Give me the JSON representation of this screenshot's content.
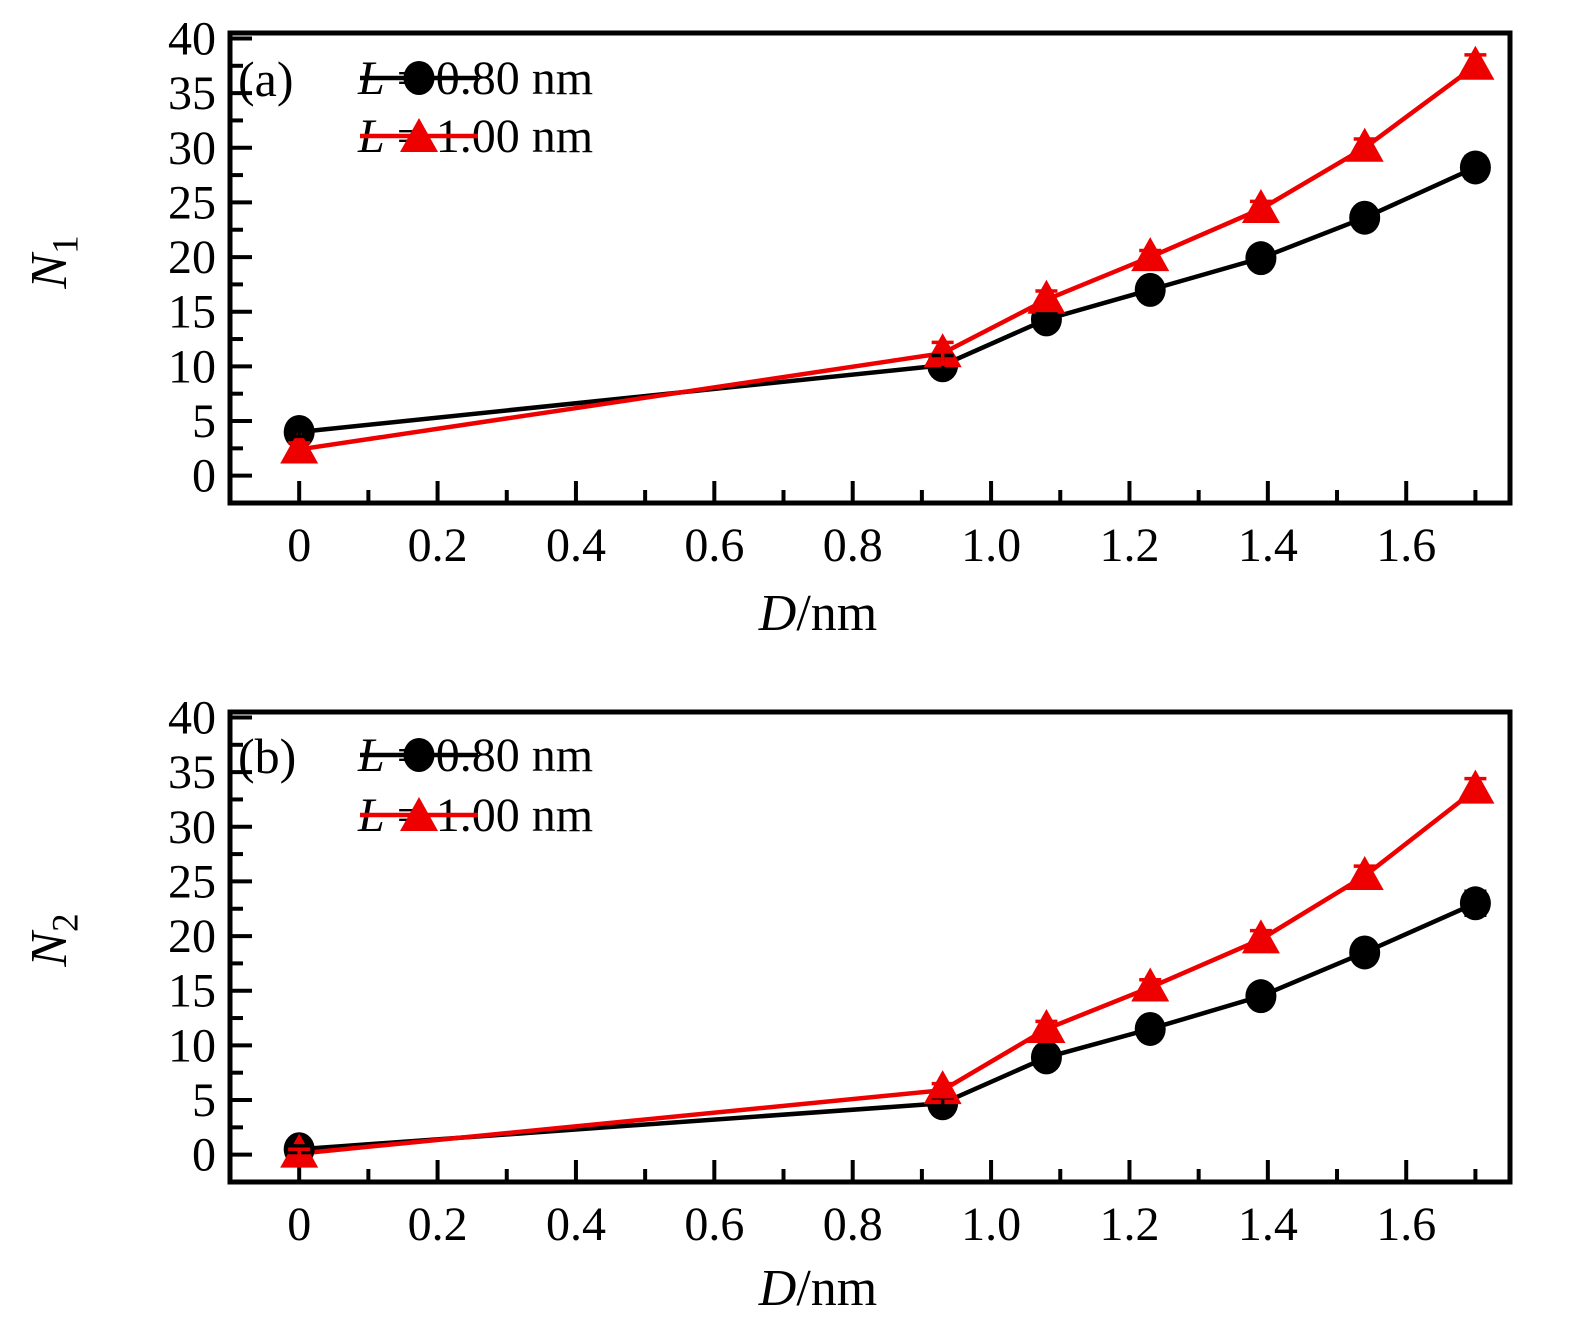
{
  "figure": {
    "background": "#ffffff",
    "series_black": "#000000",
    "series_red": "#ee0000"
  },
  "legend": {
    "entries": [
      {
        "icon": "circle-marker-icon",
        "color": "#000000",
        "var": "L",
        "rest": " = 0.80 nm"
      },
      {
        "icon": "triangle-marker-icon",
        "color": "#ee0000",
        "var": "L",
        "rest": " = 1.00 nm"
      }
    ]
  },
  "panels": {
    "a": {
      "tag": "(a)",
      "ylabel_var": "N",
      "ylabel_sub": "1",
      "xlabel_var": "D",
      "xlabel_rest": "/nm"
    },
    "b": {
      "tag": "(b)",
      "ylabel_var": "N",
      "ylabel_sub": "2",
      "xlabel_var": "D",
      "xlabel_rest": "/nm"
    }
  },
  "chart_data": [
    {
      "id": "a",
      "type": "line",
      "title": "(a)",
      "xlabel": "D/nm",
      "ylabel": "N1",
      "xlim": [
        -0.1,
        1.75
      ],
      "ylim": [
        -2.5,
        40.5
      ],
      "grid": false,
      "legend_position": "top-left",
      "x_major_ticks": [
        0,
        0.2,
        0.4,
        0.6,
        0.8,
        1.0,
        1.2,
        1.4,
        1.6
      ],
      "x_tick_labels": [
        "0",
        "0.2",
        "0.4",
        "0.6",
        "0.8",
        "1.0",
        "1.2",
        "1.4",
        "1.6"
      ],
      "x_minor_step": 0.1,
      "y_major_ticks": [
        0,
        5,
        10,
        15,
        20,
        25,
        30,
        35,
        40
      ],
      "y_tick_labels": [
        "0",
        "5",
        "10",
        "15",
        "20",
        "25",
        "30",
        "35",
        "40"
      ],
      "y_minor_step": 2.5,
      "x": [
        0,
        0.93,
        1.08,
        1.23,
        1.39,
        1.54,
        1.7
      ],
      "series": [
        {
          "name": "L = 0.80 nm",
          "marker": "circle",
          "color": "#000000",
          "values": [
            4.0,
            10.1,
            14.3,
            17.0,
            19.9,
            23.6,
            28.2
          ],
          "errors": [
            0.4,
            0.9,
            0.5,
            0.4,
            0.4,
            0.5,
            1.0
          ]
        },
        {
          "name": "L = 1.00 nm",
          "marker": "triangle",
          "color": "#ee0000",
          "values": [
            2.4,
            11.2,
            16.1,
            20.0,
            24.4,
            30.0,
            37.5
          ],
          "errors": [
            0.6,
            1.0,
            0.8,
            0.6,
            0.7,
            0.8,
            1.0
          ]
        }
      ]
    },
    {
      "id": "b",
      "type": "line",
      "title": "(b)",
      "xlabel": "D/nm",
      "ylabel": "N2",
      "xlim": [
        -0.1,
        1.75
      ],
      "ylim": [
        -2.5,
        40.5
      ],
      "grid": false,
      "legend_position": "top-left",
      "x_major_ticks": [
        0,
        0.2,
        0.4,
        0.6,
        0.8,
        1.0,
        1.2,
        1.4,
        1.6
      ],
      "x_tick_labels": [
        "0",
        "0.2",
        "0.4",
        "0.6",
        "0.8",
        "1.0",
        "1.2",
        "1.4",
        "1.6"
      ],
      "x_minor_step": 0.1,
      "y_major_ticks": [
        0,
        5,
        10,
        15,
        20,
        25,
        30,
        35,
        40
      ],
      "y_tick_labels": [
        "0",
        "5",
        "10",
        "15",
        "20",
        "25",
        "30",
        "35",
        "40"
      ],
      "y_minor_step": 2.5,
      "x": [
        0,
        0.93,
        1.08,
        1.23,
        1.39,
        1.54,
        1.7
      ],
      "series": [
        {
          "name": "L = 0.80 nm",
          "marker": "circle",
          "color": "#000000",
          "values": [
            0.5,
            4.7,
            8.9,
            11.5,
            14.5,
            18.5,
            23.0
          ],
          "errors": [
            0.3,
            0.5,
            0.5,
            0.5,
            0.5,
            0.6,
            1.1
          ]
        },
        {
          "name": "L = 1.00 nm",
          "marker": "triangle",
          "color": "#ee0000",
          "values": [
            0.1,
            5.9,
            11.5,
            15.3,
            19.7,
            25.5,
            33.4
          ],
          "errors": [
            0.4,
            0.6,
            0.7,
            0.7,
            0.8,
            0.9,
            1.0
          ]
        }
      ]
    }
  ]
}
